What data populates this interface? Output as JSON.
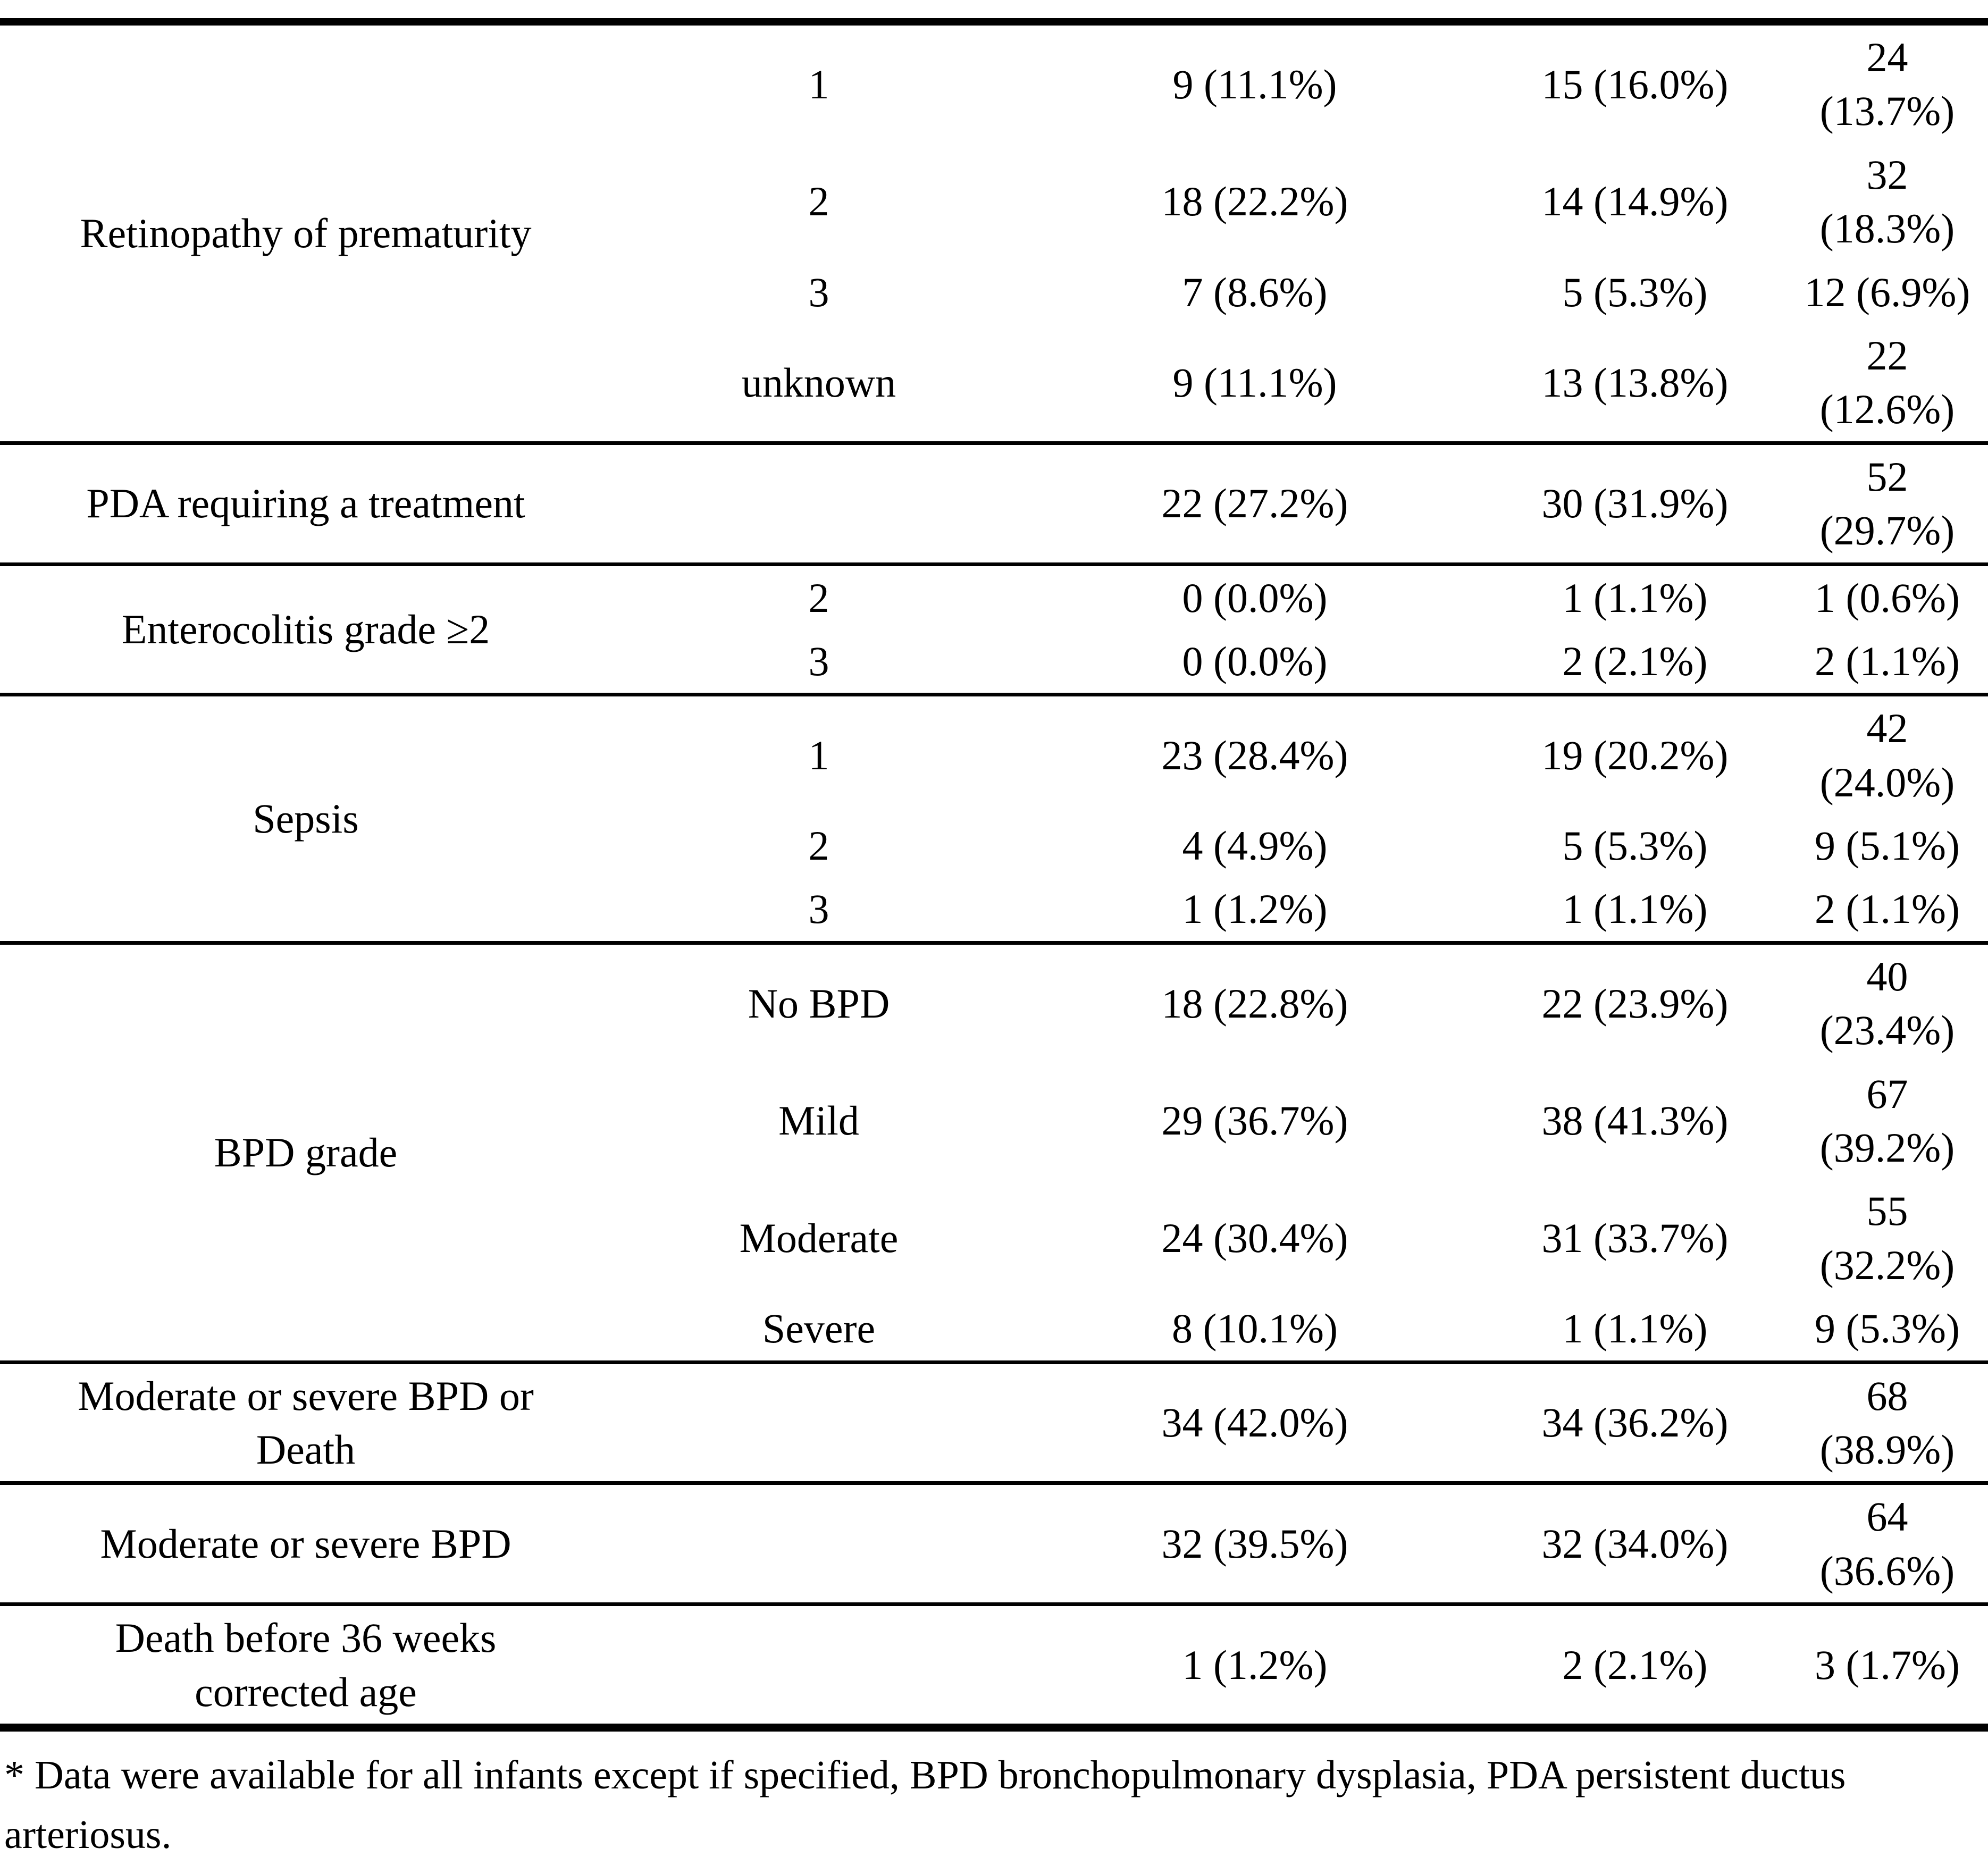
{
  "table": {
    "sections": [
      {
        "label": "Retinopathy of prematurity",
        "rows": [
          {
            "grade": "1",
            "col1": "9 (11.1%)",
            "col2": "15 (16.0%)",
            "total": "24\n(13.7%)"
          },
          {
            "grade": "2",
            "col1": "18 (22.2%)",
            "col2": "14 (14.9%)",
            "total": "32\n(18.3%)"
          },
          {
            "grade": "3",
            "col1": "7 (8.6%)",
            "col2": "5 (5.3%)",
            "total": "12 (6.9%)"
          },
          {
            "grade": "unknown",
            "col1": "9 (11.1%)",
            "col2": "13 (13.8%)",
            "total": "22\n(12.6%)"
          }
        ]
      },
      {
        "label": "PDA requiring a treatment",
        "rows": [
          {
            "grade": "",
            "col1": "22 (27.2%)",
            "col2": "30 (31.9%)",
            "total": "52\n(29.7%)"
          }
        ]
      },
      {
        "label": "Enterocolitis grade ≥2",
        "rows": [
          {
            "grade": "2",
            "col1": "0 (0.0%)",
            "col2": "1 (1.1%)",
            "total": "1 (0.6%)"
          },
          {
            "grade": "3",
            "col1": "0 (0.0%)",
            "col2": "2 (2.1%)",
            "total": "2 (1.1%)"
          }
        ]
      },
      {
        "label": "Sepsis",
        "rows": [
          {
            "grade": "1",
            "col1": "23 (28.4%)",
            "col2": "19 (20.2%)",
            "total": "42\n(24.0%)"
          },
          {
            "grade": "2",
            "col1": "4 (4.9%)",
            "col2": "5 (5.3%)",
            "total": "9 (5.1%)"
          },
          {
            "grade": "3",
            "col1": "1 (1.2%)",
            "col2": "1 (1.1%)",
            "total": "2 (1.1%)"
          }
        ]
      },
      {
        "label": "BPD grade",
        "rows": [
          {
            "grade": "No BPD",
            "col1": "18 (22.8%)",
            "col2": "22 (23.9%)",
            "total": "40\n(23.4%)"
          },
          {
            "grade": "Mild",
            "col1": "29 (36.7%)",
            "col2": "38 (41.3%)",
            "total": "67\n(39.2%)"
          },
          {
            "grade": "Moderate",
            "col1": "24 (30.4%)",
            "col2": "31 (33.7%)",
            "total": "55\n(32.2%)"
          },
          {
            "grade": "Severe",
            "col1": "8 (10.1%)",
            "col2": "1 (1.1%)",
            "total": "9 (5.3%)"
          }
        ]
      },
      {
        "label": "Moderate or severe BPD or\nDeath",
        "rows": [
          {
            "grade": "",
            "col1": "34 (42.0%)",
            "col2": "34 (36.2%)",
            "total": "68\n(38.9%)"
          }
        ]
      },
      {
        "label": "Moderate or severe BPD",
        "rows": [
          {
            "grade": "",
            "col1": "32 (39.5%)",
            "col2": "32 (34.0%)",
            "total": "64\n(36.6%)"
          }
        ]
      },
      {
        "label": "Death before 36 weeks\ncorrected age",
        "rows": [
          {
            "grade": "",
            "col1": "1 (1.2%)",
            "col2": "2 (2.1%)",
            "total": "3 (1.7%)"
          }
        ]
      }
    ],
    "footnote": "* Data were available for all infants except if specified, BPD bronchopulmonary dysplasia, PDA persistent ductus\narteriosus."
  }
}
